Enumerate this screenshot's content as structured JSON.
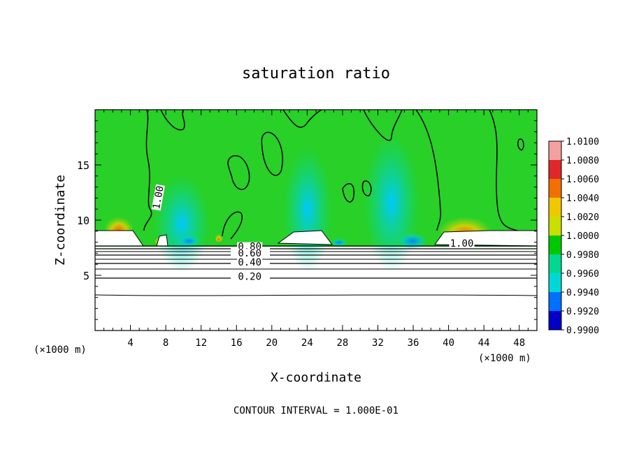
{
  "chart_data": {
    "type": "heatmap",
    "title": "saturation ratio",
    "xlabel": "X-coordinate",
    "ylabel": "Z-coordinate",
    "x_unit_left": "(×1000 m)",
    "x_unit_right": "(×1000 m)",
    "xlim": [
      0,
      50
    ],
    "ylim": [
      0,
      20
    ],
    "x_ticks": [
      "4",
      "8",
      "12",
      "16",
      "20",
      "24",
      "28",
      "32",
      "36",
      "40",
      "44",
      "48"
    ],
    "x_tick_values": [
      4,
      8,
      12,
      16,
      20,
      24,
      28,
      32,
      36,
      40,
      44,
      48
    ],
    "y_ticks": [
      "5",
      "10",
      "15"
    ],
    "y_tick_values": [
      5,
      10,
      15
    ],
    "colorbar": {
      "labels": [
        "1.0100",
        "1.0080",
        "1.0060",
        "1.0040",
        "1.0020",
        "1.0000",
        "0.9980",
        "0.9960",
        "0.9940",
        "0.9920",
        "0.9900"
      ],
      "colors": [
        "#f4a0a0",
        "#e02828",
        "#f07000",
        "#f0c800",
        "#c8e000",
        "#00c800",
        "#00d890",
        "#00d8d8",
        "#0070ff",
        "#0000c8",
        "#6000a0"
      ]
    },
    "contour_labels": [
      {
        "text": "1.00",
        "x": 7.5,
        "z": 12.0,
        "rotate": -80
      },
      {
        "text": "1.00",
        "x": 41.5,
        "z": 7.6,
        "rotate": 0
      },
      {
        "text": "0.80",
        "x": 17.5,
        "z": 7.3,
        "rotate": 0
      },
      {
        "text": "0.60",
        "x": 17.5,
        "z": 6.7,
        "rotate": 0
      },
      {
        "text": "0.40",
        "x": 17.5,
        "z": 5.9,
        "rotate": 0
      },
      {
        "text": "0.20",
        "x": 17.5,
        "z": 4.6,
        "rotate": 0
      }
    ],
    "contour_levels": [
      0.1,
      0.2,
      0.3,
      0.4,
      0.5,
      0.6,
      0.7,
      0.8,
      0.9,
      1.0
    ],
    "footer": "CONTOUR INTERVAL = 1.000E-01"
  }
}
